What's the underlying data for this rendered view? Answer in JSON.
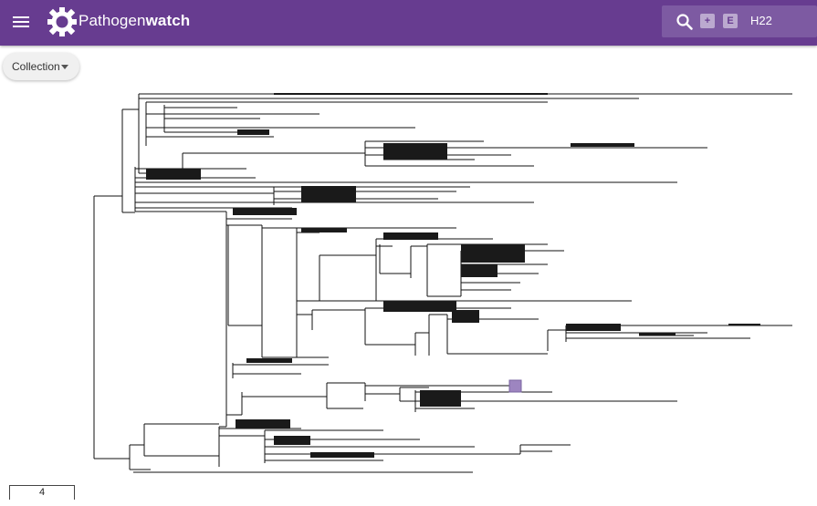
{
  "app": {
    "brand_light": "Pathogen",
    "brand_bold": "watch",
    "menu_icon": "hamburger-menu-icon",
    "logo_icon": "gear-logo-icon"
  },
  "search": {
    "icon": "search-icon",
    "add_chip": "+",
    "e_chip": "E",
    "query": "H22"
  },
  "toolbar": {
    "collection_label": "Collection",
    "collection_caret": "chevron-down-icon"
  },
  "tree": {
    "highlight_color": "#9d85c0",
    "line_color": "#111111"
  },
  "scale": {
    "value": "4"
  },
  "colors": {
    "header": "#673c90",
    "search_bg": "#7d5aa2",
    "chip_bg": "#bba9cf"
  }
}
